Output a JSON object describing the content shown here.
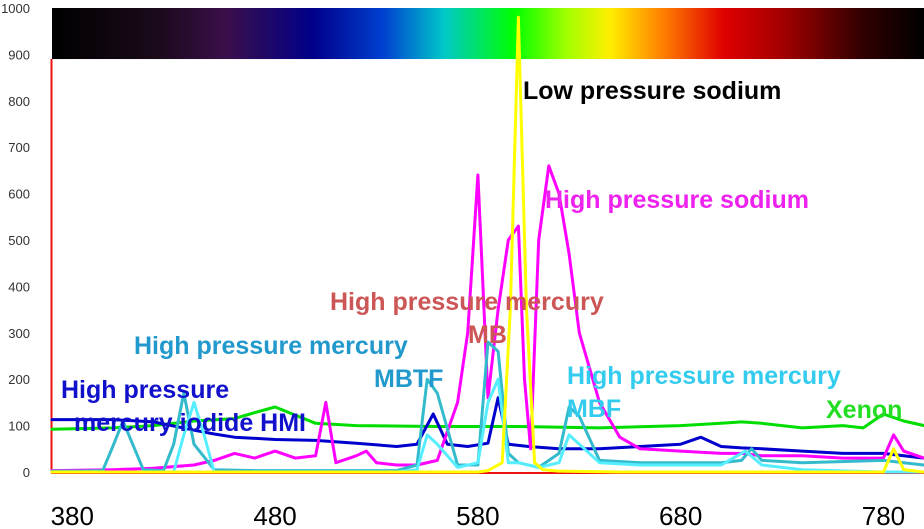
{
  "chart_data": {
    "type": "line",
    "title": "",
    "xlabel": "",
    "ylabel": "",
    "xlim": [
      370,
      800
    ],
    "ylim": [
      0,
      1000
    ],
    "x_ticks": [
      "380",
      "480",
      "580",
      "680",
      "780"
    ],
    "y_ticks": [
      "0",
      "100",
      "200",
      "300",
      "400",
      "500",
      "600",
      "700",
      "800",
      "900",
      "1000"
    ],
    "grid": false,
    "legend": "none",
    "spectrum_band": {
      "y_from": 890,
      "y_to": 1000,
      "x_from": 380,
      "x_to": 780
    },
    "series": [
      {
        "color": "#00DD00",
        "x": [
          370,
          400,
          420,
          440,
          460,
          470,
          480,
          500,
          520,
          560,
          600,
          640,
          680,
          700,
          710,
          720,
          740,
          760,
          770,
          780,
          790,
          800
        ],
        "y": [
          92,
          95,
          100,
          110,
          115,
          128,
          140,
          105,
          100,
          98,
          98,
          95,
          100,
          105,
          108,
          105,
          95,
          100,
          95,
          125,
          110,
          100
        ]
      },
      {
        "color": "#0000CC",
        "x": [
          370,
          400,
          420,
          440,
          450,
          460,
          480,
          500,
          520,
          540,
          550,
          558,
          565,
          575,
          585,
          590,
          595,
          605,
          620,
          640,
          660,
          680,
          690,
          700,
          710,
          720,
          740,
          760,
          780,
          790,
          800
        ],
        "y": [
          113,
          113,
          108,
          90,
          82,
          75,
          70,
          68,
          62,
          55,
          60,
          125,
          60,
          55,
          62,
          160,
          60,
          55,
          50,
          50,
          55,
          60,
          75,
          55,
          52,
          50,
          45,
          40,
          40,
          35,
          30
        ]
      },
      {
        "color": "#FF00FF",
        "x": [
          370,
          400,
          420,
          440,
          450,
          460,
          470,
          480,
          490,
          500,
          505,
          510,
          520,
          525,
          530,
          540,
          550,
          560,
          570,
          575,
          580,
          585,
          590,
          595,
          600,
          603,
          606,
          610,
          615,
          620,
          625,
          630,
          640,
          650,
          660,
          680,
          700,
          710,
          720,
          740,
          760,
          780,
          785,
          790,
          800
        ],
        "y": [
          3,
          5,
          8,
          15,
          25,
          40,
          30,
          45,
          30,
          35,
          150,
          20,
          35,
          45,
          20,
          15,
          15,
          25,
          150,
          300,
          640,
          160,
          350,
          500,
          530,
          200,
          50,
          500,
          660,
          600,
          470,
          300,
          150,
          75,
          50,
          45,
          40,
          40,
          35,
          35,
          30,
          30,
          80,
          45,
          30
        ]
      },
      {
        "color": "#33BBCC",
        "x": [
          370,
          385,
          395,
          400,
          405,
          415,
          425,
          430,
          435,
          440,
          450,
          470,
          500,
          540,
          550,
          555,
          560,
          570,
          580,
          585,
          590,
          595,
          600,
          610,
          620,
          625,
          630,
          640,
          660,
          700,
          710,
          715,
          720,
          740,
          780,
          790,
          800
        ],
        "y": [
          2,
          2,
          3,
          55,
          110,
          5,
          3,
          60,
          170,
          60,
          5,
          3,
          3,
          3,
          15,
          200,
          170,
          15,
          15,
          280,
          260,
          40,
          20,
          10,
          40,
          140,
          120,
          25,
          20,
          20,
          25,
          50,
          25,
          20,
          25,
          20,
          15
        ]
      },
      {
        "color": "#55EEFF",
        "x": [
          370,
          430,
          435,
          440,
          445,
          450,
          470,
          500,
          540,
          550,
          555,
          560,
          570,
          580,
          585,
          590,
          595,
          600,
          610,
          620,
          625,
          630,
          640,
          660,
          700,
          712,
          720,
          740,
          780,
          800
        ],
        "y": [
          0,
          0,
          80,
          150,
          80,
          0,
          0,
          0,
          0,
          5,
          80,
          60,
          10,
          20,
          150,
          200,
          20,
          20,
          10,
          20,
          80,
          60,
          20,
          15,
          15,
          45,
          15,
          5,
          0,
          0
        ]
      },
      {
        "color": "#FFFF00",
        "x": [
          370,
          580,
          585,
          592,
          596,
          600,
          604,
          608,
          612,
          620,
          650,
          700,
          780,
          785,
          790,
          800
        ],
        "y": [
          0,
          0,
          3,
          20,
          350,
          980,
          350,
          20,
          5,
          2,
          0,
          0,
          0,
          50,
          5,
          0
        ]
      }
    ],
    "annotations": [
      {
        "text": "Low pressure sodium",
        "color": "#000000"
      },
      {
        "text": "High pressure sodium",
        "color": "#EE22EE"
      },
      {
        "text": "High pressure mercury",
        "color": "#CC5555"
      },
      {
        "text": "MB",
        "color": "#CC5555"
      },
      {
        "text": "High pressure mercury",
        "color": "#2299CC"
      },
      {
        "text": "MBTF",
        "color": "#2299CC"
      },
      {
        "text": "High pressure",
        "color": "#1111CC"
      },
      {
        "text": "mercury iodide HMI",
        "color": "#1111CC"
      },
      {
        "text": "High pressure mercury",
        "color": "#33CCEE"
      },
      {
        "text": "MBF",
        "color": "#33CCEE"
      },
      {
        "text": "Xenon",
        "color": "#22DD22"
      }
    ],
    "axis_color": "#EE1111"
  }
}
